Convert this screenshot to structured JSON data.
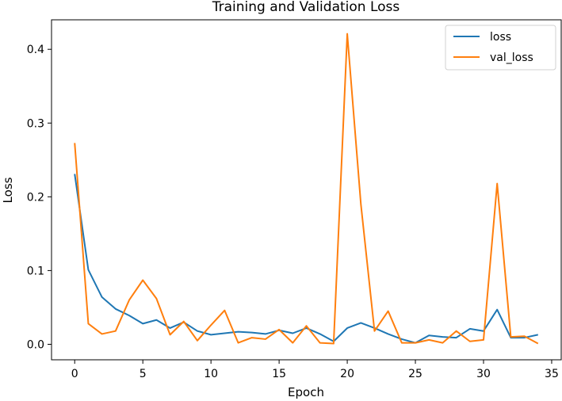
{
  "chart_data": {
    "type": "line",
    "title": "Training and Validation Loss",
    "xlabel": "Epoch",
    "ylabel": "Loss",
    "xlim": [
      -1.7,
      35.7
    ],
    "ylim": [
      -0.021,
      0.44
    ],
    "xticks": [
      0,
      5,
      10,
      15,
      20,
      25,
      30,
      35
    ],
    "yticks": [
      0.0,
      0.1,
      0.2,
      0.3,
      0.4
    ],
    "ytick_labels": [
      "0.0",
      "0.1",
      "0.2",
      "0.3",
      "0.4"
    ],
    "grid": false,
    "legend_position": "top-right",
    "x": [
      0,
      1,
      2,
      3,
      4,
      5,
      6,
      7,
      8,
      9,
      10,
      11,
      12,
      13,
      14,
      15,
      16,
      17,
      18,
      19,
      20,
      21,
      22,
      23,
      24,
      25,
      26,
      27,
      28,
      29,
      30,
      31,
      32,
      33,
      34
    ],
    "series": [
      {
        "name": "loss",
        "color": "#1f77b4",
        "values": [
          0.231,
          0.101,
          0.064,
          0.048,
          0.039,
          0.028,
          0.033,
          0.022,
          0.03,
          0.018,
          0.013,
          0.015,
          0.017,
          0.016,
          0.014,
          0.019,
          0.015,
          0.022,
          0.014,
          0.004,
          0.022,
          0.029,
          0.022,
          0.014,
          0.007,
          0.002,
          0.012,
          0.01,
          0.009,
          0.021,
          0.018,
          0.047,
          0.009,
          0.009,
          0.013
        ]
      },
      {
        "name": "val_loss",
        "color": "#ff7f0e",
        "values": [
          0.273,
          0.028,
          0.014,
          0.018,
          0.06,
          0.087,
          0.062,
          0.013,
          0.031,
          0.005,
          0.026,
          0.046,
          0.002,
          0.009,
          0.007,
          0.02,
          0.002,
          0.025,
          0.002,
          0.001,
          0.421,
          0.19,
          0.018,
          0.045,
          0.002,
          0.002,
          0.006,
          0.002,
          0.018,
          0.004,
          0.006,
          0.218,
          0.01,
          0.011,
          0.001
        ]
      }
    ]
  }
}
